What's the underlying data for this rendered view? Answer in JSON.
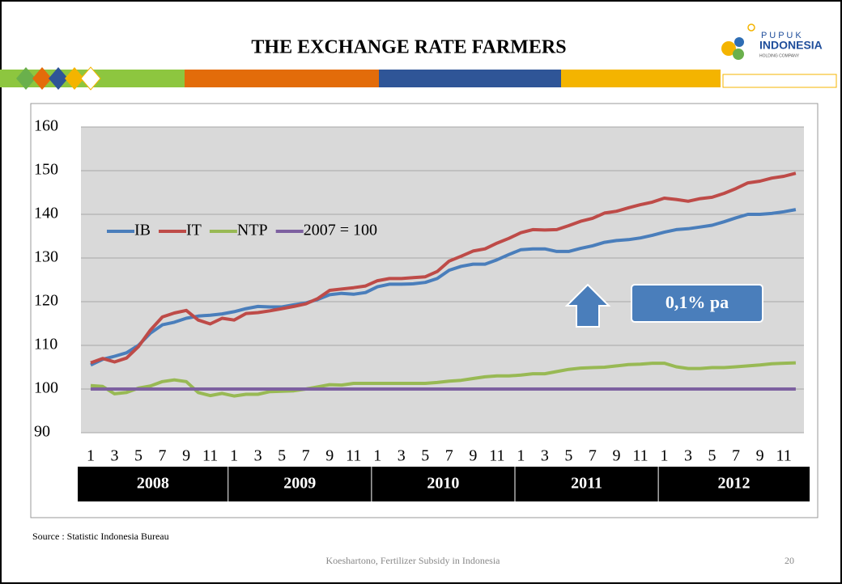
{
  "header": {
    "title": "THE EXCHANGE RATE FARMERS",
    "logo_top": "P U P U K",
    "logo_main": "INDONESIA",
    "logo_sub": "HOLDING COMPANY"
  },
  "chart_data": {
    "type": "line",
    "categories": [
      "1",
      null,
      "3",
      null,
      "5",
      null,
      "7",
      null,
      "9",
      null,
      "11",
      null,
      "1",
      null,
      "3",
      null,
      "5",
      null,
      "7",
      null,
      "9",
      null,
      "11",
      null,
      "1",
      null,
      "3",
      null,
      "5",
      null,
      "7",
      null,
      "9",
      null,
      "11",
      null,
      "1",
      null,
      "3",
      null,
      "5",
      null,
      "7",
      null,
      "9",
      null,
      "11",
      null,
      "1",
      null,
      "3",
      null,
      "5",
      null,
      "7",
      null,
      "9",
      null,
      "11",
      null
    ],
    "years": [
      "2008",
      "2009",
      "2010",
      "2011",
      "2012"
    ],
    "series": [
      {
        "name": "IB",
        "color": "#4a7ebb",
        "values": [
          105.5,
          106.8,
          107.5,
          108.3,
          110,
          112.8,
          114.7,
          115.3,
          116.2,
          116.7,
          116.9,
          117.2,
          117.7,
          118.4,
          118.9,
          118.8,
          118.8,
          119.3,
          119.7,
          120.5,
          121.6,
          121.9,
          121.7,
          122.1,
          123.4,
          124,
          124,
          124.1,
          124.4,
          125.3,
          127.2,
          128.1,
          128.6,
          128.6,
          129.6,
          130.8,
          131.9,
          132.1,
          132.1,
          131.5,
          131.5,
          132.2,
          132.8,
          133.6,
          134,
          134.2,
          134.6,
          135.2,
          135.9,
          136.5,
          136.7,
          137.1,
          137.5,
          138.3,
          139.2,
          140,
          140,
          140.2,
          140.6,
          141.1
        ]
      },
      {
        "name": "IT",
        "color": "#be4b48",
        "values": [
          106,
          107,
          106.2,
          107.1,
          109.7,
          113.5,
          116.5,
          117.4,
          118,
          115.8,
          114.9,
          116.2,
          115.8,
          117.3,
          117.5,
          117.9,
          118.4,
          118.9,
          119.5,
          120.7,
          122.6,
          122.9,
          123.2,
          123.6,
          124.8,
          125.3,
          125.3,
          125.5,
          125.7,
          126.9,
          129.3,
          130.4,
          131.6,
          132.1,
          133.4,
          134.5,
          135.8,
          136.5,
          136.4,
          136.5,
          137.4,
          138.4,
          139.1,
          140.3,
          140.7,
          141.5,
          142.2,
          142.8,
          143.7,
          143.4,
          143,
          143.6,
          143.9,
          144.8,
          145.9,
          147.2,
          147.6,
          148.3,
          148.7,
          149.4
        ]
      },
      {
        "name": "NTP",
        "color": "#98b954",
        "values": [
          100.8,
          100.6,
          98.9,
          99.2,
          100.2,
          100.7,
          101.7,
          102.1,
          101.7,
          99.2,
          98.5,
          99,
          98.4,
          98.8,
          98.8,
          99.4,
          99.5,
          99.6,
          100,
          100.5,
          101,
          100.9,
          101.3,
          101.3,
          101.3,
          101.3,
          101.3,
          101.3,
          101.3,
          101.5,
          101.8,
          102,
          102.4,
          102.8,
          103,
          103,
          103.2,
          103.5,
          103.5,
          104,
          104.5,
          104.8,
          104.9,
          105,
          105.3,
          105.6,
          105.7,
          105.9,
          105.9,
          105.1,
          104.7,
          104.7,
          104.9,
          104.9,
          105.1,
          105.3,
          105.5,
          105.8,
          105.9,
          106
        ]
      },
      {
        "name": "2007 = 100",
        "color": "#7d60a0",
        "values": [
          100,
          100,
          100,
          100,
          100,
          100,
          100,
          100,
          100,
          100,
          100,
          100,
          100,
          100,
          100,
          100,
          100,
          100,
          100,
          100,
          100,
          100,
          100,
          100,
          100,
          100,
          100,
          100,
          100,
          100,
          100,
          100,
          100,
          100,
          100,
          100,
          100,
          100,
          100,
          100,
          100,
          100,
          100,
          100,
          100,
          100,
          100,
          100,
          100,
          100,
          100,
          100,
          100,
          100,
          100,
          100,
          100,
          100,
          100,
          100
        ]
      }
    ],
    "ylim": [
      90,
      160
    ],
    "yticks": [
      90,
      100,
      110,
      120,
      130,
      140,
      150,
      160
    ],
    "grid": true,
    "legend": "upper left",
    "annotations": [
      "0,1% pa"
    ]
  },
  "source": "Source : Statistic Indonesia Bureau",
  "footer": {
    "text": "Koeshartono, Fertilizer Subsidy in Indonesia",
    "page": "20"
  }
}
